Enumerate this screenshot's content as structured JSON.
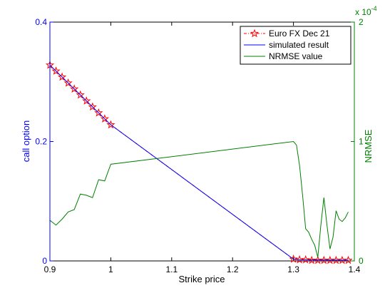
{
  "chart_data": {
    "type": "line",
    "xlabel": "Strike price",
    "ylabel_left": "call option",
    "ylabel_right": "NRMSE",
    "right_axis_multiplier": "x 10",
    "right_axis_exponent": "-4",
    "xlim": [
      0.9,
      1.4
    ],
    "ylim_left": [
      0,
      0.4
    ],
    "ylim_right": [
      0,
      2
    ],
    "x_ticks": [
      "0.9",
      "1",
      "1.1",
      "1.2",
      "1.3",
      "1.4"
    ],
    "y_left_ticks": [
      "0",
      "0.2",
      "0.4"
    ],
    "y_right_ticks": [
      "0",
      "1",
      "2"
    ],
    "grid": false,
    "legend_position": "top-right",
    "colors": {
      "left_axis": "#0000ff",
      "right_axis": "#008000",
      "euro_fx": "#ff0000",
      "simulated": "#0000ff",
      "nrmse": "#008000"
    },
    "series": [
      {
        "name": "Euro FX Dec 21",
        "axis": "left",
        "style": "dash-dot with star markers",
        "x": [
          0.9,
          0.91,
          0.92,
          0.93,
          0.94,
          0.95,
          0.96,
          0.97,
          0.98,
          0.99,
          1.0,
          1.3,
          1.31,
          1.32,
          1.33,
          1.34,
          1.35,
          1.36,
          1.37,
          1.38,
          1.39
        ],
        "y": [
          0.328,
          0.318,
          0.308,
          0.298,
          0.288,
          0.278,
          0.268,
          0.258,
          0.248,
          0.238,
          0.228,
          0.003,
          0.002,
          0.002,
          0.001,
          0.001,
          0.001,
          0.001,
          0.001,
          0.001,
          0.001
        ]
      },
      {
        "name": "simulated result",
        "axis": "left",
        "style": "solid",
        "x": [
          0.9,
          1.0,
          1.3,
          1.31,
          1.39
        ],
        "y": [
          0.328,
          0.228,
          0.003,
          0.002,
          0.001
        ]
      },
      {
        "name": "NRMSE value",
        "axis": "right",
        "style": "solid",
        "x": [
          0.9,
          0.905,
          0.91,
          0.92,
          0.93,
          0.94,
          0.95,
          0.96,
          0.97,
          0.98,
          0.99,
          1.0,
          1.3,
          1.305,
          1.31,
          1.315,
          1.32,
          1.325,
          1.33,
          1.335,
          1.34,
          1.345,
          1.35,
          1.355,
          1.36,
          1.365,
          1.37,
          1.375,
          1.38,
          1.385,
          1.39
        ],
        "y": [
          0.34,
          0.32,
          0.3,
          0.35,
          0.41,
          0.43,
          0.56,
          0.55,
          0.53,
          0.68,
          0.67,
          0.81,
          1.0,
          0.97,
          0.8,
          0.55,
          0.27,
          0.24,
          0.18,
          0.13,
          0.03,
          0.3,
          0.53,
          0.3,
          0.1,
          0.2,
          0.42,
          0.35,
          0.33,
          0.36,
          0.41
        ]
      }
    ]
  }
}
